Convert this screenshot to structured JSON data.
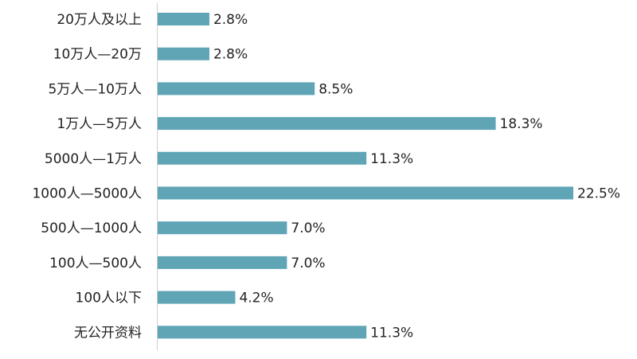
{
  "chart_data": {
    "type": "hbar",
    "categories": [
      "20万人及以上",
      "10万人—20万",
      "5万人—10万人",
      "1万人—5万人",
      "5000人—1万人",
      "1000人—5000人",
      "500人—1000人",
      "100人—500人",
      "100人以下",
      "无公开资料"
    ],
    "values": [
      2.8,
      2.8,
      8.5,
      18.3,
      11.3,
      22.5,
      7.0,
      7.0,
      4.2,
      11.3
    ],
    "value_labels": [
      "2.8%",
      "2.8%",
      "8.5%",
      "18.3%",
      "11.3%",
      "22.5%",
      "7.0%",
      "7.0%",
      "4.2%",
      "11.3%"
    ],
    "color": "#5fa5b6"
  }
}
